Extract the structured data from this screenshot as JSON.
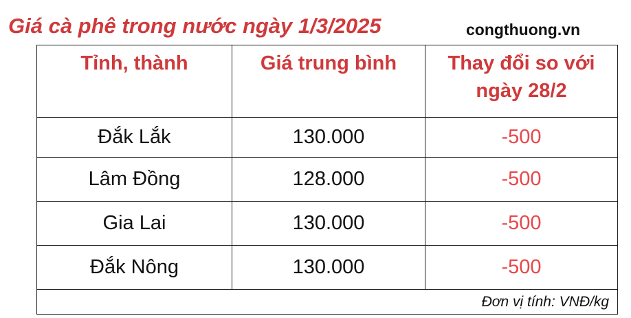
{
  "title": "Giá cà phê trong nước ngày 1/3/2025",
  "source": "congthuong.vn",
  "table": {
    "headers": [
      "Tỉnh, thành",
      "Giá trung bình",
      "Thay đổi so với ngày 28/2"
    ],
    "rows": [
      [
        "Đắk Lắk",
        "130.000",
        "-500"
      ],
      [
        "Lâm Đồng",
        "128.000",
        "-500"
      ],
      [
        "Gia Lai",
        "130.000",
        "-500"
      ],
      [
        "Đắk Nông",
        "130.000",
        "-500"
      ]
    ],
    "footer": "Đơn vị tính: VNĐ/kg"
  },
  "colors": {
    "header": "#d0393b",
    "change": "#e8474a"
  }
}
